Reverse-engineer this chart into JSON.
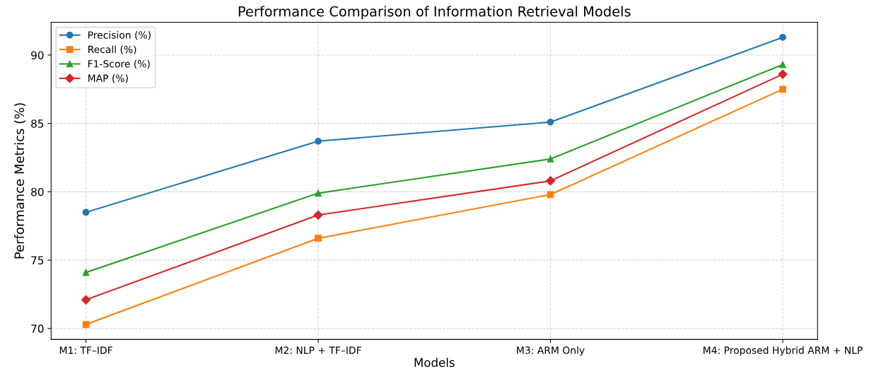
{
  "chart_data": {
    "type": "line",
    "title": "Performance Comparison of Information Retrieval Models",
    "xlabel": "Models",
    "ylabel": "Performance Metrics (%)",
    "categories": [
      "M1: TF–IDF",
      "M2: NLP + TF–IDF",
      "M3: ARM Only",
      "M4: Proposed Hybrid ARM + NLP"
    ],
    "series": [
      {
        "name": "Precision (%)",
        "color": "#1f77b4",
        "marker": "circle",
        "values": [
          78.5,
          83.7,
          85.1,
          91.3
        ]
      },
      {
        "name": "Recall (%)",
        "color": "#ff7f0e",
        "marker": "square",
        "values": [
          70.3,
          76.6,
          79.8,
          87.5
        ]
      },
      {
        "name": "F1-Score (%)",
        "color": "#2ca02c",
        "marker": "triangle",
        "values": [
          74.1,
          79.9,
          82.4,
          89.3
        ]
      },
      {
        "name": "MAP (%)",
        "color": "#d62728",
        "marker": "diamond",
        "values": [
          72.1,
          78.3,
          80.8,
          88.6
        ]
      }
    ],
    "ylim": [
      69.2,
      92.4
    ],
    "yticks": [
      70,
      75,
      80,
      85,
      90
    ],
    "grid": true,
    "legend": "top left",
    "line_style": "solid"
  }
}
